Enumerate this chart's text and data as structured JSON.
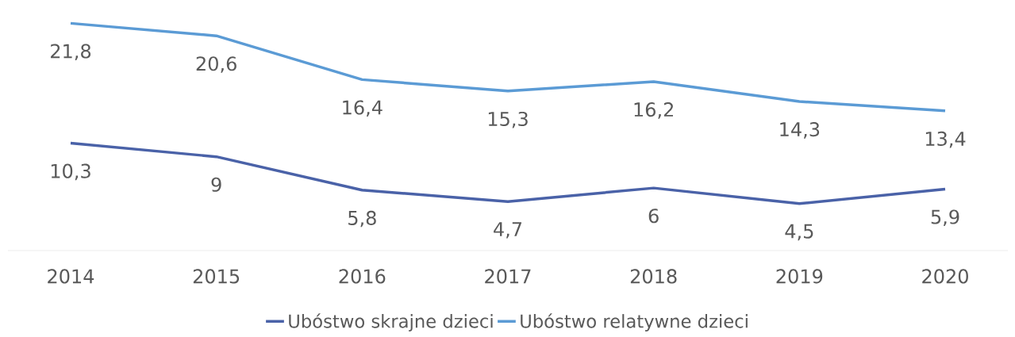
{
  "chart_data": {
    "type": "line",
    "categories": [
      "2014",
      "2015",
      "2016",
      "2017",
      "2018",
      "2019",
      "2020"
    ],
    "series": [
      {
        "name": "Ubóstwo skrajne dzieci",
        "color": "#4a62a8",
        "values": [
          10.3,
          9,
          5.8,
          4.7,
          6,
          4.5,
          5.9
        ],
        "value_labels": [
          "10,3",
          "9",
          "5,8",
          "4,7",
          "6",
          "4,5",
          "5,9"
        ]
      },
      {
        "name": "Ubóstwo relatywne dzieci",
        "color": "#5b9bd5",
        "values": [
          21.8,
          20.6,
          16.4,
          15.3,
          16.2,
          14.3,
          13.4
        ],
        "value_labels": [
          "21,8",
          "20,6",
          "16,4",
          "15,3",
          "16,2",
          "14,3",
          "13,4"
        ]
      }
    ],
    "legend": "bottom",
    "marker": "none",
    "line_style": "solid"
  }
}
